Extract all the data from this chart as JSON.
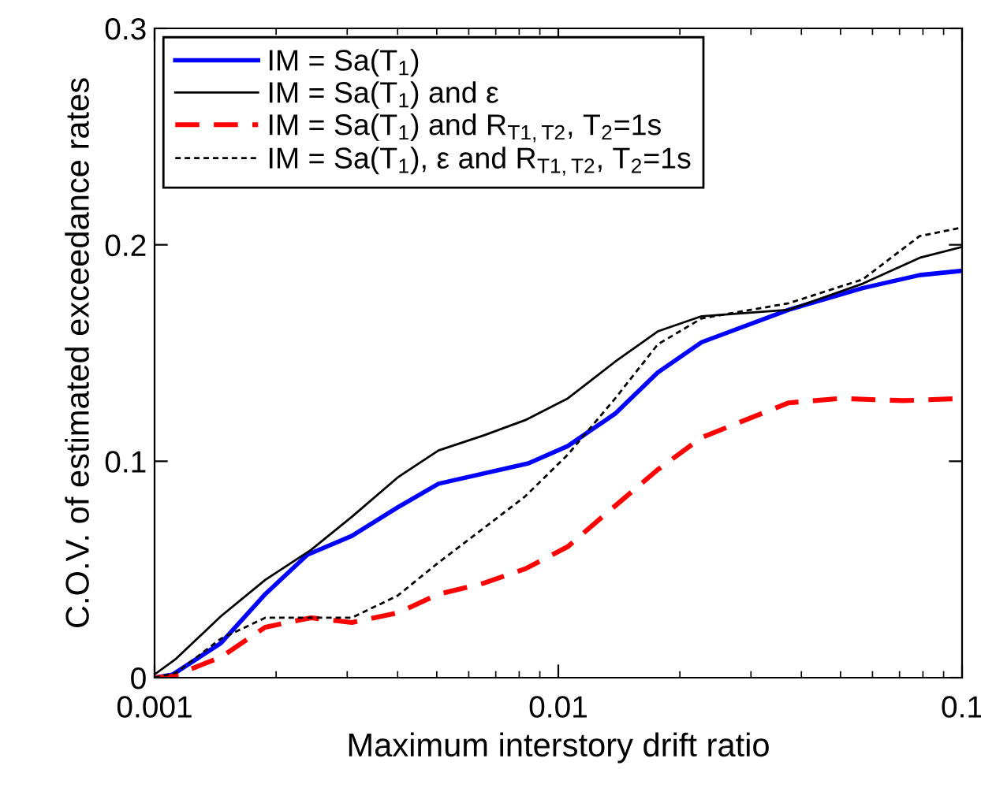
{
  "chart_data": {
    "type": "line",
    "xlabel": "Maximum interstory drift ratio",
    "ylabel": "C.O.V. of estimated exceedance rates",
    "log": "x",
    "xlim": [
      0.001,
      0.1
    ],
    "ylim": [
      0,
      0.3
    ],
    "xticks": [
      0.001,
      0.01,
      0.1
    ],
    "yticks": [
      0,
      0.1,
      0.2,
      0.3
    ],
    "grid": false,
    "legend": "top left",
    "series": [
      {
        "name": "IM = Sa(T$_{1}$)",
        "color": "#0000ff",
        "line_style": "solid",
        "x": [
          0.001,
          0.00111,
          0.00146,
          0.00188,
          0.00239,
          0.00308,
          0.004,
          0.00505,
          0.00843,
          0.01055,
          0.01383,
          0.01763,
          0.02265,
          0.0372,
          0.0567,
          0.0785,
          0.1
        ],
        "values": [
          0,
          0.0015,
          0.016,
          0.0386,
          0.0568,
          0.0655,
          0.0787,
          0.0896,
          0.099,
          0.107,
          0.122,
          0.141,
          0.155,
          0.17,
          0.18,
          0.186,
          0.188
        ]
      },
      {
        "name": "IM = Sa(T$_{1}$) and ε",
        "color": "#000000",
        "line_style": "solid",
        "x": [
          0.001,
          0.00113,
          0.00146,
          0.00188,
          0.00244,
          0.00308,
          0.004,
          0.00505,
          0.00655,
          0.00828,
          0.01055,
          0.01383,
          0.01763,
          0.02265,
          0.0372,
          0.0567,
          0.0785,
          0.1
        ],
        "values": [
          0.0015,
          0.0087,
          0.0284,
          0.0452,
          0.059,
          0.0743,
          0.0925,
          0.105,
          0.112,
          0.119,
          0.129,
          0.146,
          0.16,
          0.167,
          0.17,
          0.182,
          0.194,
          0.199
        ]
      },
      {
        "name": "IM = Sa(T$_{1}$) and R$_{T1,T2}$, T$_{2}$=1s",
        "color": "#ff0000",
        "line_style": "dashed",
        "x": [
          0.001,
          0.00111,
          0.00146,
          0.00188,
          0.00244,
          0.00308,
          0.004,
          0.00505,
          0.00655,
          0.00828,
          0.01055,
          0.01298,
          0.01763,
          0.02265,
          0.0372,
          0.05,
          0.0716,
          0.1
        ],
        "values": [
          0,
          0.0007,
          0.0095,
          0.0233,
          0.0277,
          0.0255,
          0.0299,
          0.0386,
          0.0437,
          0.0503,
          0.0605,
          0.075,
          0.0961,
          0.111,
          0.127,
          0.129,
          0.128,
          0.129
        ]
      },
      {
        "name": "IM = Sa(T$_{1}$), ε and R$_{T1,T2}$, T$_{2}$=1s",
        "color": "#000000",
        "line_style": "dotted",
        "x": [
          0.001,
          0.00113,
          0.00146,
          0.00188,
          0.00244,
          0.00308,
          0.004,
          0.00505,
          0.00655,
          0.00828,
          0.01055,
          0.01383,
          0.01763,
          0.02265,
          0.0372,
          0.0567,
          0.0785,
          0.1
        ],
        "values": [
          0,
          0.0022,
          0.018,
          0.0277,
          0.0277,
          0.0277,
          0.0379,
          0.0532,
          0.0692,
          0.0838,
          0.103,
          0.129,
          0.154,
          0.166,
          0.173,
          0.184,
          0.204,
          0.208
        ]
      }
    ]
  }
}
